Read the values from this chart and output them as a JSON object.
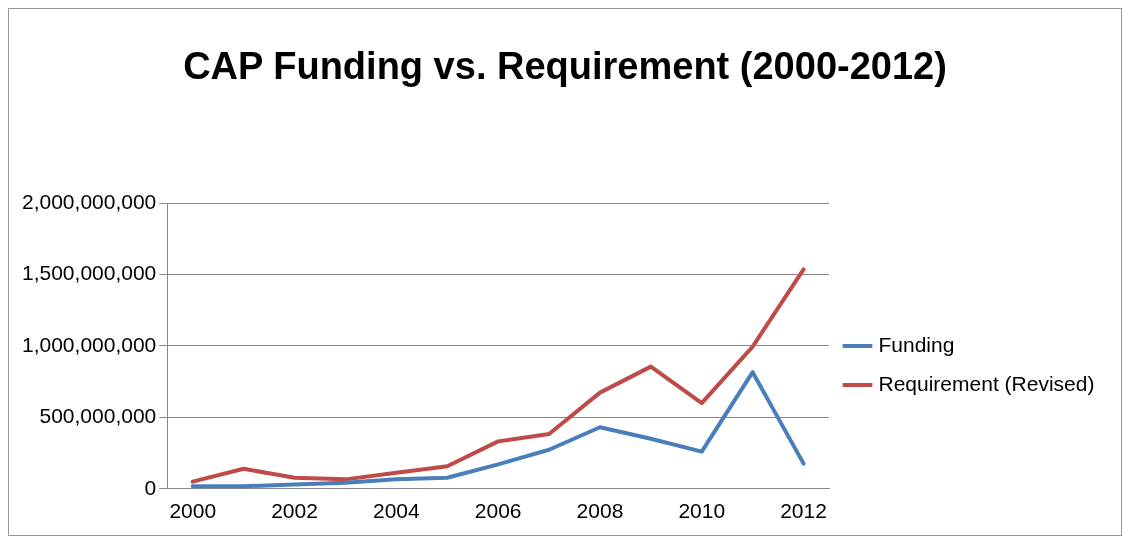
{
  "chart_data": {
    "type": "line",
    "title": "CAP Funding vs. Requirement (2000-2012)",
    "categories": [
      "2000",
      null,
      "2002",
      null,
      "2004",
      null,
      "2006",
      null,
      "2008",
      null,
      "2010",
      null,
      "2012"
    ],
    "series": [
      {
        "name": "Funding",
        "color": "#4a7ebb",
        "values": [
          18000000,
          18000000,
          30000000,
          43000000,
          66000000,
          77000000,
          171000000,
          273000000,
          431000000,
          350000000,
          260000000,
          816000000,
          176000000
        ]
      },
      {
        "name": "Requirement (Revised)",
        "color": "#be4b48",
        "values": [
          50000000,
          140000000,
          77000000,
          66000000,
          112000000,
          158000000,
          332000000,
          383000000,
          673000000,
          855000000,
          600000000,
          995000000,
          1536000000
        ]
      }
    ],
    "ylim": [
      0,
      2000000000
    ],
    "yticks": [
      {
        "value": 0,
        "label": "0"
      },
      {
        "value": 500000000,
        "label": "500,000,000"
      },
      {
        "value": 1000000000,
        "label": "1,000,000,000"
      },
      {
        "value": 1500000000,
        "label": "1,500,000,000"
      },
      {
        "value": 2000000000,
        "label": "2,000,000,000"
      }
    ],
    "grid": "y",
    "legend": "right",
    "line_style": "solid"
  }
}
